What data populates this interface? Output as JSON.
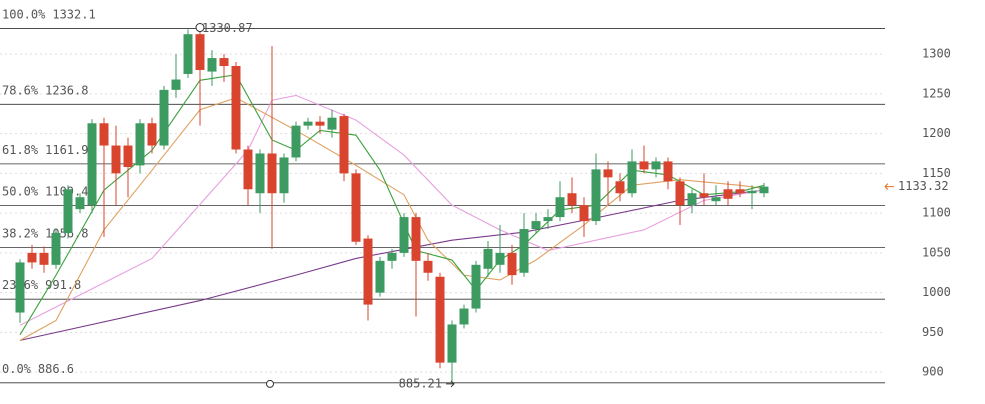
{
  "chart_data": {
    "type": "candlestick",
    "ylim": [
      865,
      1368
    ],
    "yticks": [
      900,
      950,
      1000,
      1050,
      1100,
      1150,
      1200,
      1250,
      1300
    ],
    "grid": true,
    "up_color": "#3d9a61",
    "down_color": "#d9442e",
    "open": [
      975,
      1050,
      1050,
      1035,
      1075,
      1105,
      1110,
      1213,
      1185,
      1185,
      1160,
      1213,
      1185,
      1255,
      1275,
      1325,
      1278,
      1295,
      1285,
      1180,
      1125,
      1175,
      1125,
      1170,
      1210,
      1215,
      1205,
      1222,
      1150,
      1068,
      1000,
      1040,
      1050,
      1095,
      1040,
      1020,
      912,
      960,
      980,
      1030,
      1035,
      1050,
      1025,
      1080,
      1090,
      1095,
      1125,
      1110,
      1090,
      1155,
      1140,
      1125,
      1165,
      1155,
      1165,
      1140,
      1110,
      1125,
      1115,
      1130,
      1130,
      1125,
      1125
    ],
    "high": [
      1042,
      1060,
      1058,
      1080,
      1135,
      1125,
      1218,
      1220,
      1210,
      1195,
      1218,
      1220,
      1260,
      1300,
      1330.87,
      1330,
      1305,
      1300,
      1290,
      1185,
      1180,
      1310,
      1175,
      1215,
      1220,
      1222,
      1230,
      1225,
      1155,
      1072,
      1045,
      1055,
      1100,
      1100,
      1050,
      1025,
      965,
      985,
      1040,
      1065,
      1085,
      1060,
      1100,
      1100,
      1105,
      1140,
      1145,
      1120,
      1175,
      1165,
      1150,
      1180,
      1185,
      1170,
      1170,
      1145,
      1130,
      1150,
      1135,
      1140,
      1140,
      1135,
      1138
    ],
    "low": [
      962,
      1030,
      1025,
      1030,
      1068,
      1100,
      1100,
      1070,
      1110,
      1120,
      1150,
      1175,
      1180,
      1245,
      1270,
      1210,
      1260,
      1265,
      1175,
      1110,
      1100,
      1055,
      1113,
      1165,
      1205,
      1200,
      1195,
      1140,
      1060,
      965,
      995,
      1030,
      1045,
      970,
      1015,
      905,
      885.21,
      955,
      975,
      1020,
      1025,
      1010,
      1020,
      1075,
      1080,
      1090,
      1100,
      1070,
      1085,
      1110,
      1115,
      1120,
      1150,
      1145,
      1130,
      1085,
      1100,
      1110,
      1110,
      1110,
      1120,
      1105,
      1120
    ],
    "close": [
      1038,
      1038,
      1035,
      1075,
      1130,
      1120,
      1213,
      1185,
      1150,
      1158,
      1213,
      1185,
      1255,
      1268,
      1325,
      1280,
      1295,
      1285,
      1180,
      1130,
      1175,
      1125,
      1170,
      1210,
      1215,
      1210,
      1220,
      1150,
      1064,
      985,
      1040,
      1050,
      1095,
      1040,
      1025,
      912,
      960,
      980,
      1035,
      1055,
      1050,
      1022,
      1080,
      1090,
      1095,
      1120,
      1110,
      1090,
      1155,
      1145,
      1125,
      1165,
      1155,
      1165,
      1140,
      1110,
      1125,
      1120,
      1120,
      1118,
      1125,
      1128,
      1133.32
    ],
    "lines": [
      {
        "color": "#7a3a8a",
        "x": [
          0,
          15,
          23,
          28,
          36,
          42,
          48,
          55,
          62
        ],
        "values": [
          940,
          990,
          1022,
          1043,
          1066,
          1076,
          1094,
          1116,
          1129
        ]
      },
      {
        "color": "#e8a0e0",
        "x": [
          0,
          11,
          19,
          21,
          23,
          28,
          32,
          36,
          40,
          44,
          48,
          52,
          57,
          62
        ],
        "values": [
          959,
          1043,
          1179,
          1242,
          1248,
          1217,
          1173,
          1110,
          1079,
          1053,
          1066,
          1079,
          1116,
          1129
        ]
      },
      {
        "color": "#e0a060",
        "x": [
          0,
          3,
          7,
          11,
          15,
          18,
          23,
          28,
          32,
          34,
          37,
          40,
          43,
          47,
          51,
          55,
          60,
          62
        ],
        "values": [
          940,
          965,
          1079,
          1154,
          1230,
          1245,
          1204,
          1160,
          1123,
          1066,
          1022,
          1016,
          1041,
          1085,
          1135,
          1142,
          1135,
          1131
        ]
      },
      {
        "color": "#3aa23a",
        "x": [
          0,
          3,
          7,
          11,
          15,
          18,
          21,
          23,
          25,
          28,
          30,
          33,
          36,
          38,
          40,
          42,
          45,
          48,
          51,
          54,
          57,
          60,
          62
        ],
        "values": [
          947,
          1022,
          1129,
          1179,
          1267,
          1274,
          1192,
          1179,
          1204,
          1198,
          1154,
          1053,
          1041,
          1003,
          1041,
          1060,
          1104,
          1110,
          1154,
          1148,
          1123,
          1127,
          1135
        ]
      }
    ],
    "levels": [
      {
        "label": "100.0%",
        "value": 1332.1
      },
      {
        "label": "78.6%",
        "value": 1236.8
      },
      {
        "label": "61.8%",
        "value": 1161.9
      },
      {
        "label": "50.0%",
        "value": 1109.4
      },
      {
        "label": "38.2%",
        "value": 1056.8
      },
      {
        "label": "23.6%",
        "value": 991.8
      },
      {
        "label": "0.0%",
        "value": 886.6
      }
    ],
    "annotations": [
      {
        "value": 1330.87,
        "x": 14
      },
      {
        "value": 885.21,
        "x": 36
      },
      {
        "value": 1133.32,
        "color": "#e07020"
      }
    ]
  }
}
